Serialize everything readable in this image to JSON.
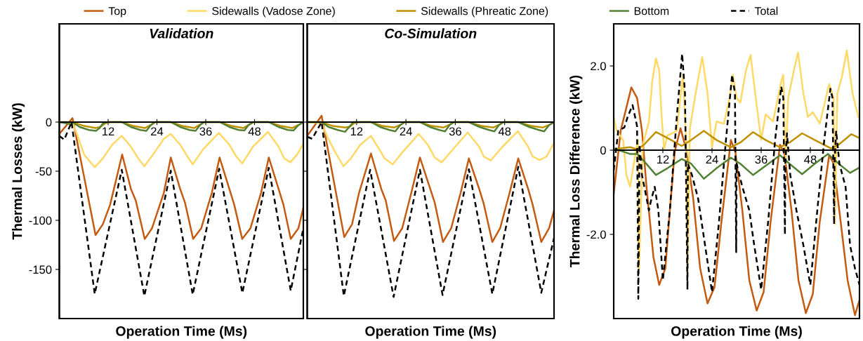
{
  "chart_data": [
    {
      "type": "line",
      "title": "Validation",
      "xlabel": "Operation Time (Ms)",
      "ylabel": "Thermal Losses (kW)",
      "xlim": [
        0,
        60
      ],
      "xticks": [
        12,
        24,
        36,
        48
      ],
      "ylim": [
        -200,
        100
      ],
      "yticks": [
        0,
        -50,
        -100,
        -150
      ],
      "grid": false,
      "legend": "top",
      "series": [
        {
          "name": "Top",
          "color": "#c55a11",
          "x": [
            0,
            3.25,
            8.9,
            10.7,
            12.5,
            15.45,
            17.6,
            18.8,
            21.0,
            22.8,
            25.7,
            27.4,
            29.7,
            30.9,
            32.9,
            34.9,
            37.5,
            39.4,
            41.8,
            43,
            44.97,
            47,
            49.6,
            51.5,
            53.9,
            55.1,
            56.9,
            58.8,
            60
          ],
          "values": [
            -12,
            4,
            -115,
            -104,
            -84,
            -33,
            -68,
            -80,
            -119,
            -108,
            -72,
            -36,
            -68,
            -82,
            -119,
            -108,
            -72,
            -36,
            -68,
            -84,
            -119,
            -108,
            -72,
            -36,
            -68,
            -84,
            -119,
            -108,
            -87
          ]
        },
        {
          "name": "Sidewalls (Vadose Zone)",
          "color": "#ffd966",
          "x": [
            0,
            3.25,
            4.4,
            6.1,
            8.7,
            10.7,
            13,
            15.35,
            17.6,
            19.4,
            20.9,
            23.4,
            25.7,
            27.4,
            29.7,
            31.5,
            32.8,
            35.5,
            39.2,
            41.8,
            43.5,
            45,
            47.6,
            51.3,
            53.9,
            55.3,
            56.8,
            58.5,
            60
          ],
          "values": [
            0,
            -1,
            -13,
            -33,
            -46,
            -37,
            -23,
            -14,
            -25,
            -37,
            -45,
            -31,
            -17,
            -12,
            -23,
            -35,
            -43,
            -27,
            -11,
            -23,
            -35,
            -42,
            -25,
            -10,
            -25,
            -37,
            -41,
            -33,
            -22
          ]
        },
        {
          "name": "Sidewalls (Phreatic Zone)",
          "color": "#bf9000",
          "x": [
            0,
            3.25,
            6.1,
            9,
            10.2,
            11.3,
            12.5,
            15.35,
            18.2,
            21.1,
            22.5,
            23.7,
            27.4,
            30.3,
            33.2,
            34.6,
            35.8,
            39.5,
            42.4,
            45.3,
            46.7,
            47.9,
            51.5,
            54.5,
            57.3,
            58.8,
            60
          ],
          "values": [
            0,
            0,
            -4,
            -6,
            -4.6,
            -1,
            0,
            0,
            -4,
            -6,
            -3,
            0,
            0,
            -4,
            -6,
            -2.6,
            0,
            0,
            -4,
            -6,
            -2.6,
            0,
            0,
            -4,
            -6,
            -3,
            0
          ]
        },
        {
          "name": "Bottom",
          "color": "#548235",
          "x": [
            0,
            2.7,
            3.25,
            5,
            7.3,
            9,
            9.9,
            10.7,
            11.9,
            15.35,
            17.6,
            19.9,
            21.4,
            22.5,
            23.4,
            27.4,
            29.7,
            32,
            33.5,
            34.6,
            35.5,
            39.5,
            41.8,
            44.1,
            45.5,
            46.5,
            47.6,
            51.5,
            53.9,
            56.2,
            57.6,
            58.8,
            60
          ],
          "values": [
            0,
            -2,
            0,
            -5,
            -8,
            -8.9,
            -6,
            -1.4,
            0,
            0,
            -5,
            -8,
            -8.9,
            -3,
            0,
            0,
            -5,
            -8,
            -8.9,
            -3,
            0,
            0,
            -5,
            -8,
            -8.5,
            -3,
            0,
            0,
            -5,
            -8,
            -8.5,
            -3,
            0
          ]
        },
        {
          "name": "Total",
          "color": "#000000",
          "line_style": "dashed",
          "x": [
            0,
            1.2,
            3,
            8.7,
            15.35,
            20.9,
            27.4,
            32.8,
            39.3,
            45,
            51.5,
            56.9,
            60
          ],
          "values": [
            -14,
            -18,
            0,
            -175,
            -48.5,
            -177,
            -49.5,
            -175.6,
            -47.5,
            -174,
            -46.5,
            -171.7,
            -108
          ]
        }
      ]
    },
    {
      "type": "line",
      "title": "Co-Simulation",
      "xlabel": "Operation Time (Ms)",
      "xlim": [
        0,
        60
      ],
      "xticks": [
        12,
        24,
        36,
        48
      ],
      "ylim": [
        -200,
        100
      ],
      "yticks": [
        0,
        -50,
        -100,
        -150
      ],
      "tick_labels": "x",
      "grid": false,
      "series": [
        {
          "color": "#c55a11",
          "x": [
            0,
            3.5,
            9,
            10.9,
            12.6,
            15.5,
            18,
            19.1,
            21.1,
            23.1,
            25.3,
            27.4,
            29.9,
            31,
            33,
            35,
            37.3,
            39.3,
            41.8,
            42.9,
            45,
            46.9,
            49.2,
            51.3,
            53.7,
            54.8,
            56.9,
            58.8,
            60
          ],
          "values": [
            -14,
            6.5,
            -117,
            -104,
            -72,
            -32,
            -68,
            -80,
            -121,
            -108,
            -72,
            -36,
            -68,
            -82,
            -122,
            -108,
            -72,
            -37,
            -68,
            -83,
            -122,
            -108,
            -72,
            -37,
            -68,
            -84,
            -122,
            -108,
            -90
          ]
        },
        {
          "color": "#ffd966",
          "x": [
            0,
            3.5,
            4.9,
            6.6,
            8.8,
            10.6,
            12.9,
            15.5,
            18,
            18.8,
            20.8,
            23.1,
            27.1,
            29.3,
            31,
            32.7,
            35.6,
            39,
            41.8,
            42.9,
            44.6,
            47.5,
            51.2,
            53.7,
            54.8,
            56.5,
            58.2,
            60
          ],
          "values": [
            0,
            -1,
            -15,
            -29,
            -45,
            -37,
            -23,
            -14,
            -31,
            -37,
            -43,
            -31,
            -12,
            -23,
            -36,
            -41,
            -27,
            -10.5,
            -25,
            -35,
            -39,
            -25,
            -9.3,
            -25,
            -35,
            -38.6,
            -35,
            -21
          ]
        },
        {
          "color": "#bf9000",
          "x": [
            0,
            3.5,
            6.2,
            9.2,
            10.4,
            11.4,
            12.6,
            15.5,
            18.3,
            21.2,
            22.6,
            23.8,
            27.4,
            30.3,
            33.2,
            34.6,
            35.8,
            39.3,
            42.4,
            45.3,
            46.7,
            47.9,
            51.3,
            54.5,
            57.3,
            58.8,
            60
          ],
          "values": [
            0,
            0,
            -4,
            -5.5,
            -4.6,
            -1,
            0,
            0,
            -4,
            -5.5,
            -3,
            0,
            0,
            -4,
            -5.5,
            -2.6,
            0,
            0,
            -4,
            -5.5,
            -2.6,
            0,
            0,
            -4,
            -5.5,
            -3,
            0
          ]
        },
        {
          "color": "#548235",
          "x": [
            0,
            3.5,
            5.2,
            7.4,
            9.2,
            10.2,
            11.2,
            15.5,
            17.7,
            20,
            21.4,
            22.6,
            23.6,
            27.4,
            29.8,
            32.1,
            33.5,
            34.6,
            35.6,
            39.3,
            41.9,
            44.2,
            45.5,
            46.6,
            47.6,
            51.3,
            54,
            56.3,
            57.6,
            58.8,
            60
          ],
          "values": [
            0,
            0,
            -5,
            -8,
            -9.9,
            -5,
            0,
            0,
            -5,
            -8,
            -9.5,
            -3,
            0,
            0,
            -5,
            -8,
            -9.5,
            -3,
            0,
            0,
            -5,
            -8,
            -9.5,
            -3,
            0,
            0,
            -5,
            -8,
            -9.5,
            -3,
            0
          ]
        },
        {
          "color": "#000000",
          "line_style": "dashed",
          "x": [
            0,
            1.2,
            3.5,
            8.9,
            15.3,
            21,
            27.4,
            32.9,
            39.3,
            45,
            51.3,
            56.9,
            60
          ],
          "values": [
            -15,
            -17,
            0,
            -177,
            -48.5,
            -178,
            -48.5,
            -176,
            -48,
            -175,
            -45.5,
            -173.7,
            -118
          ]
        }
      ]
    },
    {
      "type": "line",
      "xlabel": "Operation Time (Ms)",
      "ylabel": "Thermal Loss Difference (kW)",
      "xlim": [
        0,
        60
      ],
      "xticks": [
        12,
        24,
        36,
        48
      ],
      "ylim": [
        -4,
        3
      ],
      "yticks": [
        {
          "value": -2,
          "label": "-2.0"
        },
        0,
        {
          "value": 2,
          "label": "2.0"
        }
      ],
      "grid": false,
      "series": [
        {
          "color": "#c55a11",
          "x": [
            0,
            1.7,
            4.3,
            5.7,
            6.9,
            8,
            9.7,
            11.1,
            12.6,
            13.7,
            14.9,
            16.3,
            17.7,
            19.4,
            21.1,
            22.9,
            24.6,
            26.3,
            28.6,
            29.7,
            31.4,
            33.1,
            34.9,
            36.6,
            38.3,
            40.6,
            41.7,
            43.4,
            45.1,
            46.9,
            48.6,
            50.3,
            52.6,
            53.7,
            55.4,
            57.1,
            58.9,
            59.9
          ],
          "values": [
            -1.04,
            0.46,
            1.49,
            1.24,
            0.46,
            -0.87,
            -2.54,
            -3.2,
            -2.81,
            -1.43,
            -0.04,
            0.52,
            0.02,
            -1.15,
            -2.81,
            -3.64,
            -3.26,
            -1.7,
            0.24,
            -0.04,
            -1.43,
            -3.09,
            -3.81,
            -3.37,
            -1.7,
            0.13,
            -0.09,
            -1.43,
            -3.09,
            -3.87,
            -3.42,
            -1.7,
            -0.12,
            -0.32,
            -1.7,
            -3.09,
            -3.92,
            -3.59
          ]
        },
        {
          "color": "#ffd966",
          "x": [
            0,
            0.7,
            2.3,
            3.1,
            4,
            4.9,
            5.9,
            6.2,
            7.1,
            8.6,
            9.4,
            10.3,
            11.1,
            11.7,
            12.3,
            13.1,
            14.3,
            15.4,
            16.9,
            17.7,
            18,
            18.6,
            20,
            21.6,
            22.9,
            24,
            25.1,
            26.9,
            28.3,
            29.1,
            30,
            30.9,
            32.3,
            33.4,
            34.9,
            36,
            37.1,
            38.9,
            40.9,
            41.4,
            42,
            42.6,
            44,
            45,
            46.3,
            47.4,
            48.6,
            50.3,
            52.6,
            53.7,
            54,
            54.6,
            55.7,
            56.9,
            58.3,
            59.7
          ],
          "values": [
            0.79,
            0.46,
            0.24,
            -0.59,
            -0.87,
            -0.32,
            0.24,
            -2.81,
            0.13,
            0.68,
            1.63,
            2.18,
            1.9,
            0.79,
            0.02,
            0.35,
            0.4,
            0.46,
            1.79,
            0.24,
            -2.98,
            0.52,
            1.35,
            2.21,
            1.35,
            0.07,
            0.68,
            0.63,
            1.24,
            1.79,
            1.24,
            1.13,
            1.9,
            2.26,
            1.07,
            0.24,
            0.85,
            0.68,
            1.63,
            1.79,
            -0.32,
            1.24,
            1.9,
            2.32,
            1.35,
            0.79,
            0.9,
            0.63,
            1.57,
            1.24,
            -1.76,
            1.35,
            1.74,
            2.37,
            1.35,
            0.79
          ]
        },
        {
          "color": "#bf9000",
          "x": [
            0,
            4,
            5.7,
            7.4,
            10.3,
            13.1,
            16.6,
            18.9,
            22,
            25.1,
            28.6,
            30.9,
            34,
            37.1,
            40.6,
            42.9,
            46,
            49.1,
            53.1,
            54.9,
            58,
            59.9
          ],
          "values": [
            0.02,
            0.07,
            0.02,
            0.13,
            0.43,
            0.29,
            0.1,
            0.24,
            0.46,
            0.24,
            0.07,
            0.18,
            0.43,
            0.24,
            0.07,
            0.18,
            0.4,
            0.24,
            0.04,
            0.13,
            0.38,
            0.29
          ]
        },
        {
          "color": "#548235",
          "x": [
            0,
            4,
            5.7,
            7.4,
            10.3,
            13.1,
            16.6,
            18.9,
            22,
            25.1,
            28.6,
            30.9,
            34,
            37.1,
            40.6,
            42.9,
            46,
            49.1,
            52.3,
            54.9,
            57.7,
            59.7
          ],
          "values": [
            0.04,
            -0.09,
            -0.09,
            -0.26,
            -0.59,
            -0.43,
            -0.21,
            -0.32,
            -0.68,
            -0.43,
            -0.18,
            -0.32,
            -0.59,
            -0.37,
            -0.12,
            -0.32,
            -0.57,
            -0.32,
            -0.09,
            -0.32,
            -0.54,
            -0.43
          ]
        },
        {
          "color": "#000000",
          "line_style": "dashed",
          "x": [
            0,
            1.1,
            2.6,
            3.4,
            4.6,
            5.7,
            6,
            6.3,
            6.9,
            8.6,
            9.1,
            10,
            10.9,
            12,
            13.7,
            15.4,
            16.7,
            17.4,
            18,
            18.1,
            19.1,
            20.6,
            22.3,
            24,
            25.7,
            27.4,
            28.9,
            29.6,
            29.9,
            30,
            31.4,
            33.1,
            34.3,
            36,
            37.7,
            39.4,
            40.9,
            41.4,
            41.8,
            41.9,
            42.3,
            43.1,
            44.6,
            46.3,
            48,
            49.7,
            51.4,
            52.9,
            53.4,
            53.8,
            53.9,
            54.3,
            55.1,
            56.6,
            57.7,
            58.9,
            60
          ],
          "values": [
            -0.48,
            0.46,
            0.54,
            0.79,
            1.07,
            0.57,
            -3.53,
            0.13,
            -0.59,
            -1.43,
            -1.2,
            -0.87,
            -1.43,
            -3.09,
            -1.43,
            0.79,
            2.29,
            1.35,
            -3.31,
            -0.32,
            -0.59,
            -1.15,
            -2.26,
            -3.37,
            -1.7,
            0.24,
            1.79,
            1.35,
            -2.42,
            -0.32,
            -0.87,
            -1.43,
            -2.26,
            -3.31,
            -1.7,
            0.24,
            1.51,
            1.24,
            -2.01,
            -0.32,
            0.4,
            -0.59,
            -1.43,
            -2.26,
            -3.2,
            -1.43,
            0.24,
            1.46,
            1.24,
            -1.76,
            -0.32,
            0.46,
            -0.32,
            -0.87,
            -2.26,
            -2.81,
            -3.2
          ]
        }
      ]
    }
  ]
}
